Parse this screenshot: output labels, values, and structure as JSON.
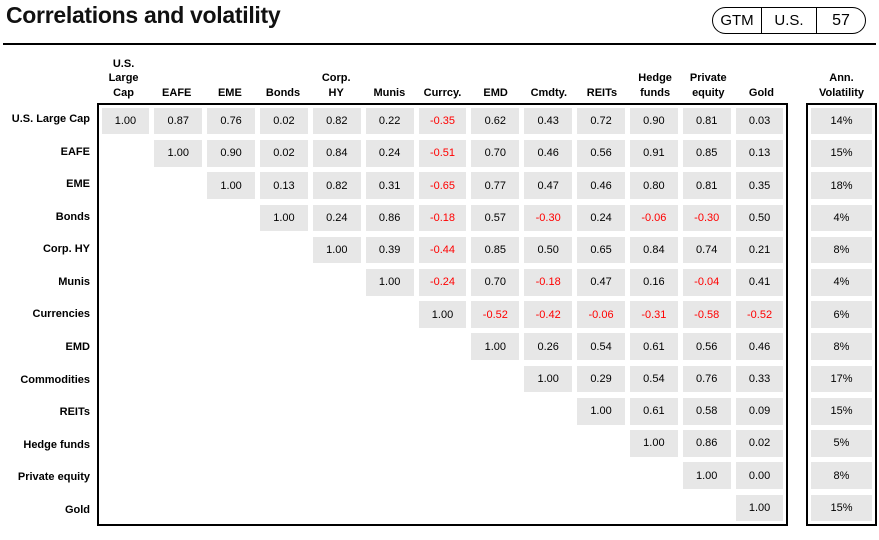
{
  "page": {
    "title": "Correlations and volatility",
    "badge": {
      "gtm": "GTM",
      "region": "U.S.",
      "page_number": "57"
    }
  },
  "chart_data": {
    "type": "table",
    "title": "Correlations and volatility",
    "description": "Upper-triangular correlation matrix of asset classes with annualized volatility column",
    "col_headers": [
      "U.S.\nLarge\nCap",
      "EAFE",
      "EME",
      "Bonds",
      "Corp.\nHY",
      "Munis",
      "Currcy.",
      "EMD",
      "Cmdty.",
      "REITs",
      "Hedge\nfunds",
      "Private\nequity",
      "Gold"
    ],
    "vol_header": "Ann.\nVolatility",
    "rows": [
      {
        "label": "U.S. Large Cap",
        "values": [
          1.0,
          0.87,
          0.76,
          0.02,
          0.82,
          0.22,
          -0.35,
          0.62,
          0.43,
          0.72,
          0.9,
          0.81,
          0.03
        ],
        "volatility": "14%"
      },
      {
        "label": "EAFE",
        "values": [
          null,
          1.0,
          0.9,
          0.02,
          0.84,
          0.24,
          -0.51,
          0.7,
          0.46,
          0.56,
          0.91,
          0.85,
          0.13
        ],
        "volatility": "15%"
      },
      {
        "label": "EME",
        "values": [
          null,
          null,
          1.0,
          0.13,
          0.82,
          0.31,
          -0.65,
          0.77,
          0.47,
          0.46,
          0.8,
          0.81,
          0.35
        ],
        "volatility": "18%"
      },
      {
        "label": "Bonds",
        "values": [
          null,
          null,
          null,
          1.0,
          0.24,
          0.86,
          -0.18,
          0.57,
          -0.3,
          0.24,
          -0.06,
          -0.3,
          0.5
        ],
        "volatility": "4%"
      },
      {
        "label": "Corp. HY",
        "values": [
          null,
          null,
          null,
          null,
          1.0,
          0.39,
          -0.44,
          0.85,
          0.5,
          0.65,
          0.84,
          0.74,
          0.21
        ],
        "volatility": "8%"
      },
      {
        "label": "Munis",
        "values": [
          null,
          null,
          null,
          null,
          null,
          1.0,
          -0.24,
          0.7,
          -0.18,
          0.47,
          0.16,
          -0.04,
          0.41
        ],
        "volatility": "4%"
      },
      {
        "label": "Currencies",
        "values": [
          null,
          null,
          null,
          null,
          null,
          null,
          1.0,
          -0.52,
          -0.42,
          -0.06,
          -0.31,
          -0.58,
          -0.52
        ],
        "volatility": "6%"
      },
      {
        "label": "EMD",
        "values": [
          null,
          null,
          null,
          null,
          null,
          null,
          null,
          1.0,
          0.26,
          0.54,
          0.61,
          0.56,
          0.46
        ],
        "volatility": "8%"
      },
      {
        "label": "Commodities",
        "values": [
          null,
          null,
          null,
          null,
          null,
          null,
          null,
          null,
          1.0,
          0.29,
          0.54,
          0.76,
          0.33
        ],
        "volatility": "17%"
      },
      {
        "label": "REITs",
        "values": [
          null,
          null,
          null,
          null,
          null,
          null,
          null,
          null,
          null,
          1.0,
          0.61,
          0.58,
          0.09
        ],
        "volatility": "15%"
      },
      {
        "label": "Hedge funds",
        "values": [
          null,
          null,
          null,
          null,
          null,
          null,
          null,
          null,
          null,
          null,
          1.0,
          0.86,
          0.02
        ],
        "volatility": "5%"
      },
      {
        "label": "Private equity",
        "values": [
          null,
          null,
          null,
          null,
          null,
          null,
          null,
          null,
          null,
          null,
          null,
          1.0,
          0.0
        ],
        "volatility": "8%"
      },
      {
        "label": "Gold",
        "values": [
          null,
          null,
          null,
          null,
          null,
          null,
          null,
          null,
          null,
          null,
          null,
          null,
          1.0
        ],
        "volatility": "15%"
      }
    ],
    "colors": {
      "cell_bg": "#e7e7e7",
      "negative_text": "#ff0000",
      "positive_text": "#000000"
    },
    "layout_hints": {
      "matrix_shape": "upper-triangular",
      "grid": "off",
      "borders": "thick black box around matrix and volatility column"
    }
  }
}
